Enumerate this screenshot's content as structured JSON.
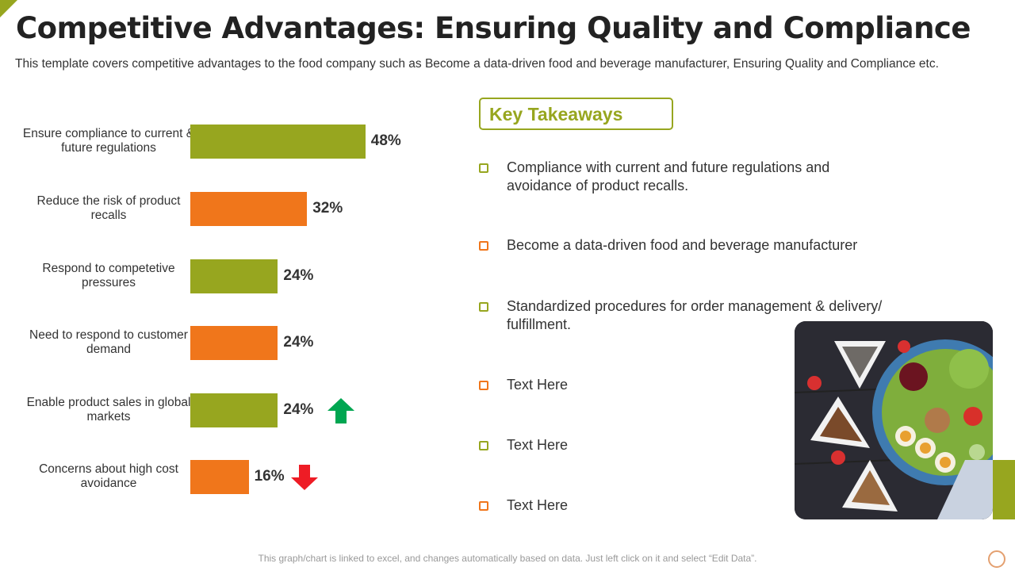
{
  "title": "Competitive Advantages: Ensuring Quality and Compliance",
  "subtitle": "This template covers competitive advantages to the food company such as Become a data-driven food and beverage manufacturer,  Ensuring Quality and Compliance etc.",
  "colors": {
    "green": "#97a61f",
    "orange": "#f0761b",
    "up": "#00a651",
    "down": "#ee1c25"
  },
  "chart_data": {
    "type": "bar",
    "orientation": "horizontal",
    "categories": [
      "Ensure compliance to current & future regulations",
      "Reduce the risk of product recalls",
      "Respond to competetive pressures",
      "Need to respond to customer demand",
      "Enable product sales in global markets",
      "Concerns about high cost avoidance"
    ],
    "values": [
      48,
      32,
      24,
      24,
      24,
      16
    ],
    "labels": [
      "48%",
      "32%",
      "24%",
      "24%",
      "24%",
      "16%"
    ],
    "bar_colors": [
      "green",
      "orange",
      "green",
      "orange",
      "green",
      "orange"
    ],
    "annotations": [
      {
        "category_index": 4,
        "icon": "arrow-up-icon"
      },
      {
        "category_index": 5,
        "icon": "arrow-down-icon"
      }
    ],
    "grid": false
  },
  "takeaways": {
    "title": "Key Takeaways",
    "items": [
      {
        "text": "Compliance with current and future regulations and avoidance of product recalls.",
        "color": "green"
      },
      {
        "text": "Become a data-driven food and beverage manufacturer",
        "color": "orange"
      },
      {
        "text": "Standardized procedures for order management & delivery/ fulfillment.",
        "color": "green"
      },
      {
        "text": "Text Here",
        "color": "orange"
      },
      {
        "text": "Text Here",
        "color": "green"
      },
      {
        "text": "Text Here",
        "color": "orange"
      }
    ]
  },
  "footer": "This graph/chart is linked to excel, and changes automatically based on data. Just left click on it and select “Edit Data”."
}
